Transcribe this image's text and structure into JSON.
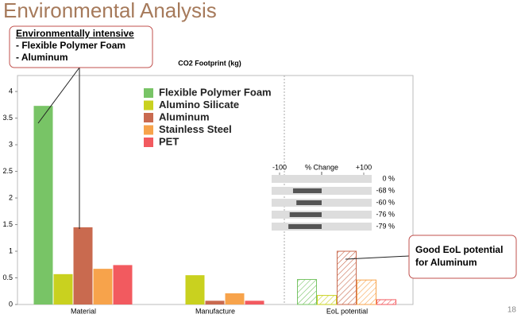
{
  "title": "Environmental Analysis",
  "callout_intensive": {
    "heading": "Environmentally intensive",
    "items": [
      "- Flexible Polymer Foam",
      "- Aluminum"
    ]
  },
  "callout_eol": [
    "Good EoL potential",
    "for Aluminum"
  ],
  "page_number": "18",
  "chart_data": [
    {
      "type": "bar",
      "title": "CO2 Footprint (kg)",
      "categories": [
        "Material",
        "Manufacture",
        "EoL potential"
      ],
      "hatched": [
        false,
        false,
        true
      ],
      "series": [
        {
          "name": "Flexible Polymer Foam",
          "color": "#78c466",
          "values": [
            3.73,
            0,
            0.47
          ]
        },
        {
          "name": "Alumino Silicate",
          "color": "#c9d11f",
          "values": [
            0.57,
            0.55,
            0.17
          ]
        },
        {
          "name": "Aluminum",
          "color": "#c96a4f",
          "values": [
            1.45,
            0.07,
            1.0
          ]
        },
        {
          "name": "Stainless Steel",
          "color": "#f7a34b",
          "values": [
            0.67,
            0.21,
            0.46
          ]
        },
        {
          "name": "PET",
          "color": "#f25a5f",
          "values": [
            0.74,
            0.07,
            0.09
          ]
        }
      ],
      "ylim": [
        0,
        4.3
      ],
      "yticks": [
        0,
        0.5,
        1,
        1.5,
        2,
        2.5,
        3,
        3.5,
        4
      ],
      "grid": false
    },
    {
      "type": "hbar",
      "title": "% Change",
      "color": "#555555",
      "values": [
        0,
        -68,
        -60,
        -76,
        -79
      ],
      "value_labels": [
        "0 %",
        "-68 %",
        "-60 %",
        "-76 %",
        "-79 %"
      ],
      "xlim": [
        -100,
        100
      ],
      "xticks": [
        -100,
        {
          "value": 100,
          "label": "+100"
        }
      ]
    }
  ]
}
